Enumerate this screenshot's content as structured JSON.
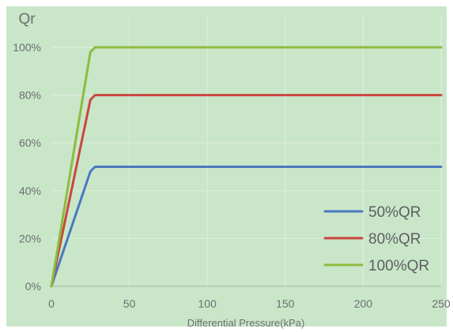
{
  "chart_data": {
    "type": "line",
    "title": "",
    "ylabel": "Qr",
    "xlabel": "Differential Pressure(kPa)",
    "xlim": [
      0,
      250
    ],
    "ylim": [
      0,
      100
    ],
    "x_ticks": [
      "0",
      "50",
      "100",
      "150",
      "200",
      "250"
    ],
    "y_ticks": [
      "0%",
      "20%",
      "40%",
      "60%",
      "80%",
      "100%"
    ],
    "grid": true,
    "legend_position": "bottom-right",
    "background_color": "#c9e6c9",
    "series": [
      {
        "name": "50%QR",
        "color": "#4a78c0",
        "points": [
          [
            0,
            0
          ],
          [
            25,
            48
          ],
          [
            28,
            50
          ],
          [
            250,
            50
          ]
        ]
      },
      {
        "name": "80%QR",
        "color": "#c9473f",
        "points": [
          [
            0,
            0
          ],
          [
            25,
            78
          ],
          [
            28,
            80
          ],
          [
            250,
            80
          ]
        ]
      },
      {
        "name": "100%QR",
        "color": "#8cbc3f",
        "points": [
          [
            0,
            0
          ],
          [
            25,
            98
          ],
          [
            28,
            100
          ],
          [
            250,
            100
          ]
        ]
      }
    ]
  }
}
